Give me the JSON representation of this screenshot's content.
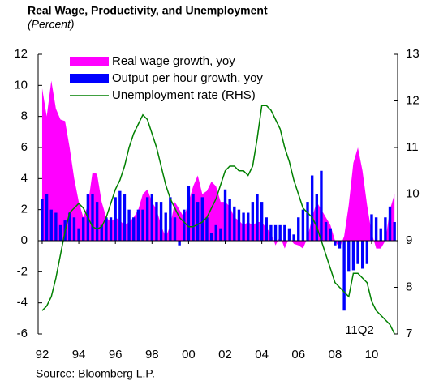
{
  "chart_data": {
    "type": "combo",
    "title": "Real Wage, Productivity, and Unemployment",
    "subtitle": "(Percent)",
    "source": "Source: Bloomberg L.P.",
    "annotation": "11Q2",
    "x": [
      1992,
      1992.25,
      1992.5,
      1992.75,
      1993,
      1993.25,
      1993.5,
      1993.75,
      1994,
      1994.25,
      1994.5,
      1994.75,
      1995,
      1995.25,
      1995.5,
      1995.75,
      1996,
      1996.25,
      1996.5,
      1996.75,
      1997,
      1997.25,
      1997.5,
      1997.75,
      1998,
      1998.25,
      1998.5,
      1998.75,
      1999,
      1999.25,
      1999.5,
      1999.75,
      2000,
      2000.25,
      2000.5,
      2000.75,
      2001,
      2001.25,
      2001.5,
      2001.75,
      2002,
      2002.25,
      2002.5,
      2002.75,
      2003,
      2003.25,
      2003.5,
      2003.75,
      2004,
      2004.25,
      2004.5,
      2004.75,
      2005,
      2005.25,
      2005.5,
      2005.75,
      2006,
      2006.25,
      2006.5,
      2006.75,
      2007,
      2007.25,
      2007.5,
      2007.75,
      2008,
      2008.25,
      2008.5,
      2008.75,
      2009,
      2009.25,
      2009.5,
      2009.75,
      2010,
      2010.25,
      2010.5,
      2010.75,
      2011,
      2011.25
    ],
    "series": [
      {
        "name": "Real wage growth, yoy",
        "kind": "area",
        "color": "#ff00ff",
        "values": [
          9.8,
          8,
          10.3,
          8.5,
          7.8,
          7.7,
          6,
          4,
          2.5,
          1.5,
          2.3,
          4.4,
          4.3,
          2.5,
          1.5,
          1.2,
          1.5,
          1.3,
          1,
          1.2,
          1.5,
          2,
          3,
          3.3,
          2.5,
          2,
          1,
          0.2,
          1,
          2.5,
          2,
          1.5,
          2.5,
          3.5,
          4.2,
          3,
          3.2,
          3.8,
          3.5,
          2.5,
          2.5,
          2.2,
          1.5,
          1.3,
          1,
          1.2,
          1,
          1.2,
          1.2,
          0.8,
          0.5,
          -0.3,
          0.3,
          -0.5,
          0.2,
          -0.2,
          -0.3,
          -0.5,
          0.2,
          1.5,
          2.5,
          2,
          1.5,
          1,
          0,
          -0.5,
          0.3,
          2.3,
          5,
          6,
          4.5,
          2.3,
          0.5,
          -0.5,
          -0.5,
          0,
          2,
          3
        ]
      },
      {
        "name": "Output per hour growth, yoy",
        "kind": "bar",
        "color": "#0000ff",
        "values": [
          2.7,
          3,
          2,
          1.8,
          1,
          1.3,
          1.8,
          1.5,
          0.8,
          1.5,
          3,
          3,
          2.5,
          1,
          1.5,
          1.5,
          2.8,
          3.2,
          3,
          2,
          1.5,
          2,
          2,
          2.8,
          3,
          2.5,
          2.5,
          1.8,
          2.8,
          1.5,
          -0.3,
          2,
          3.5,
          3,
          2.5,
          2.8,
          1.5,
          0.5,
          1,
          0.8,
          3.3,
          2.7,
          2.2,
          2,
          1.8,
          1.8,
          2.5,
          3,
          2.5,
          1.5,
          1,
          1,
          1,
          1,
          0.8,
          0.4,
          1.5,
          2,
          2.5,
          4.2,
          3,
          4.5,
          1.2,
          0.8,
          -0.3,
          -0.5,
          -4.5,
          -2,
          -1.9,
          -1.5,
          -1.8,
          -1.5,
          1.7,
          1.5,
          0.8,
          1.5,
          2.2,
          1.2
        ]
      },
      {
        "name": "Unemployment rate (RHS)",
        "kind": "line",
        "axis": "y2",
        "color": "#008000",
        "values": [
          7.5,
          7.6,
          7.8,
          8.2,
          8.7,
          9.2,
          9.6,
          9.7,
          9.8,
          9.7,
          9.5,
          9.3,
          9.25,
          9.3,
          9.5,
          9.8,
          10.1,
          10.3,
          10.6,
          11,
          11.3,
          11.5,
          11.7,
          11.6,
          11.3,
          11,
          10.6,
          10.2,
          9.9,
          9.7,
          9.5,
          9.4,
          9.3,
          9.3,
          9.35,
          9.4,
          9.5,
          9.7,
          9.9,
          10.2,
          10.5,
          10.6,
          10.6,
          10.5,
          10.5,
          10.4,
          10.6,
          11.2,
          11.9,
          11.9,
          11.8,
          11.6,
          11.4,
          11,
          10.7,
          10.3,
          10,
          9.7,
          9.6,
          9.5,
          9.3,
          9,
          8.7,
          8.4,
          8.1,
          8,
          7.9,
          7.8,
          8.3,
          8.3,
          8.2,
          8.1,
          7.7,
          7.5,
          7.4,
          7.3,
          7.2,
          7
        ]
      }
    ],
    "xlim": [
      1991.78,
      2011.42
    ],
    "xticks": [
      {
        "value": 1992,
        "label": "92"
      },
      {
        "value": 1994,
        "label": "94"
      },
      {
        "value": 1996,
        "label": "96"
      },
      {
        "value": 1998,
        "label": "98"
      },
      {
        "value": 2000,
        "label": "00"
      },
      {
        "value": 2002,
        "label": "02"
      },
      {
        "value": 2004,
        "label": "04"
      },
      {
        "value": 2006,
        "label": "06"
      },
      {
        "value": 2008,
        "label": "08"
      },
      {
        "value": 2010,
        "label": "10"
      }
    ],
    "ylim": [
      -6,
      12
    ],
    "yticks": [
      -6,
      -4,
      -2,
      0,
      2,
      4,
      6,
      8,
      10,
      12
    ],
    "y2lim": [
      7,
      13
    ],
    "y2ticks": [
      7,
      8,
      9,
      10,
      11,
      12,
      13
    ]
  }
}
